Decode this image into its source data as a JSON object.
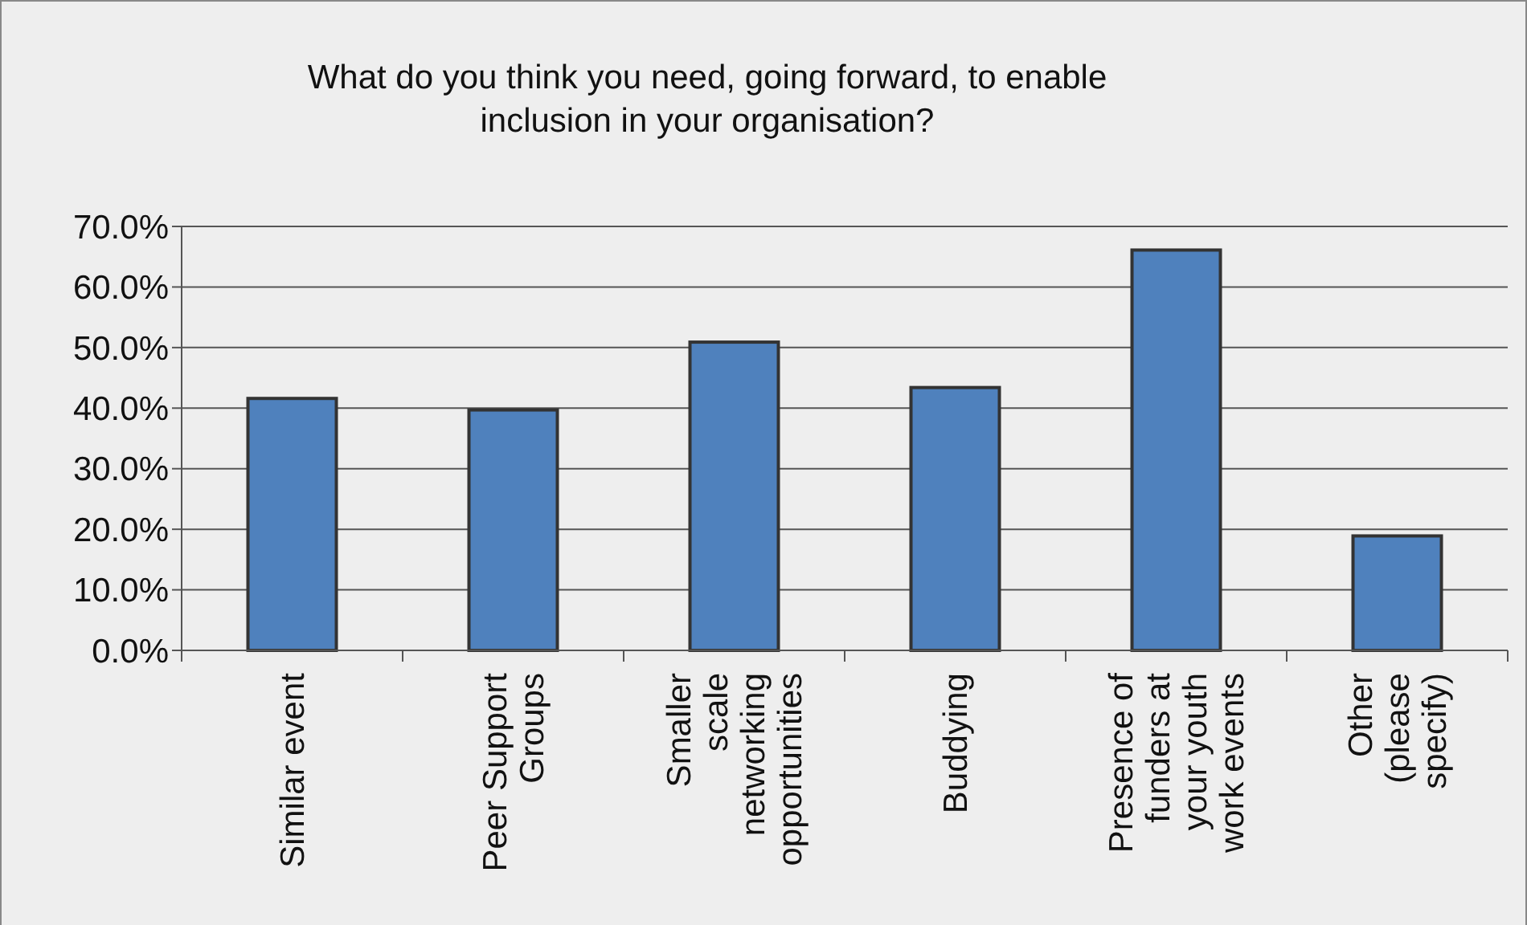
{
  "chart_data": {
    "type": "bar",
    "title": "What do you think you need, going forward, to enable\ninclusion in your organisation?",
    "categories": [
      "Similar event",
      "Peer Support\nGroups",
      "Smaller\nscale\nnetworking\nopportunities",
      "Buddying",
      "Presence of\nfunders at\nyour youth\nwork events",
      "Other\n(please\nspecify)"
    ],
    "values": [
      41.6,
      39.7,
      50.9,
      43.4,
      66.1,
      18.9
    ],
    "color": "#4f81bd",
    "ylim": [
      0,
      70
    ],
    "yticks": [
      {
        "value": 0,
        "label": "0.0%"
      },
      {
        "value": 10,
        "label": "10.0%"
      },
      {
        "value": 20,
        "label": "20.0%"
      },
      {
        "value": 30,
        "label": "30.0%"
      },
      {
        "value": 40,
        "label": "40.0%"
      },
      {
        "value": 50,
        "label": "50.0%"
      },
      {
        "value": 60,
        "label": "60.0%"
      },
      {
        "value": 70,
        "label": "70.0%"
      }
    ],
    "grid": "y"
  }
}
